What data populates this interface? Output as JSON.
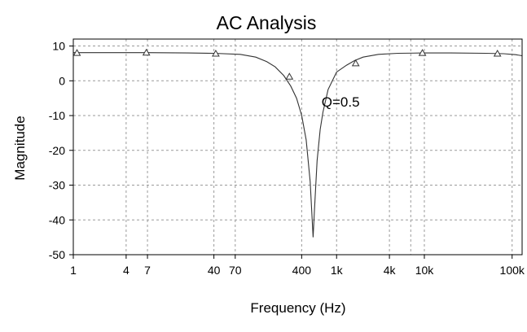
{
  "chart_data": {
    "type": "line",
    "title": "AC Analysis",
    "xlabel": "Frequency (Hz)",
    "ylabel": "Magnitude",
    "x_scale": "log",
    "xlim": [
      1,
      130000
    ],
    "ylim": [
      -50,
      12
    ],
    "grid": true,
    "x_ticks": [
      {
        "label": "1",
        "value": 1
      },
      {
        "label": "4",
        "value": 4
      },
      {
        "label": "7",
        "value": 7
      },
      {
        "label": "40",
        "value": 40
      },
      {
        "label": "70",
        "value": 70
      },
      {
        "label": "400",
        "value": 400
      },
      {
        "label": "1k",
        "value": 1000
      },
      {
        "label": "4k",
        "value": 4000
      },
      {
        "label": "10k",
        "value": 10000
      },
      {
        "label": "100k",
        "value": 100000
      }
    ],
    "y_ticks": [
      {
        "label": "10",
        "value": 10
      },
      {
        "label": "0",
        "value": 0
      },
      {
        "label": "-10",
        "value": -10
      },
      {
        "label": "-20",
        "value": -20
      },
      {
        "label": "-30",
        "value": -30
      },
      {
        "label": "-40",
        "value": -40
      },
      {
        "label": "-50",
        "value": -50
      }
    ],
    "extra_gridlines_x": [
      7000
    ],
    "annotation": {
      "text": "Q=0.5",
      "x": 800,
      "y": -6
    },
    "series": [
      {
        "x": [
          1,
          5,
          7,
          20,
          40,
          80,
          120,
          160,
          200,
          250,
          300,
          350,
          400,
          450,
          500,
          520,
          540,
          560,
          600,
          650,
          700,
          800,
          1000,
          1300,
          1600,
          2000,
          3000,
          5000,
          10000,
          20000,
          50000,
          80000,
          110000,
          130000
        ],
        "y": [
          8.1,
          8.1,
          8.1,
          8.0,
          7.9,
          7.6,
          6.8,
          5.5,
          4.0,
          1.5,
          -1.5,
          -5.0,
          -10.0,
          -17.0,
          -29.0,
          -37.0,
          -45.0,
          -37.0,
          -23.0,
          -14.0,
          -9.0,
          -2.5,
          2.5,
          4.5,
          5.8,
          6.8,
          7.6,
          7.9,
          8.0,
          8.0,
          7.9,
          7.8,
          7.5,
          7.2
        ],
        "markers": [
          {
            "x": 1.1,
            "y": 8.0
          },
          {
            "x": 6.8,
            "y": 8.1
          },
          {
            "x": 42,
            "y": 7.8
          },
          {
            "x": 290,
            "y": 1.2
          },
          {
            "x": 1650,
            "y": 5.0
          },
          {
            "x": 9500,
            "y": 8.0
          },
          {
            "x": 68000,
            "y": 7.8
          }
        ]
      }
    ]
  }
}
